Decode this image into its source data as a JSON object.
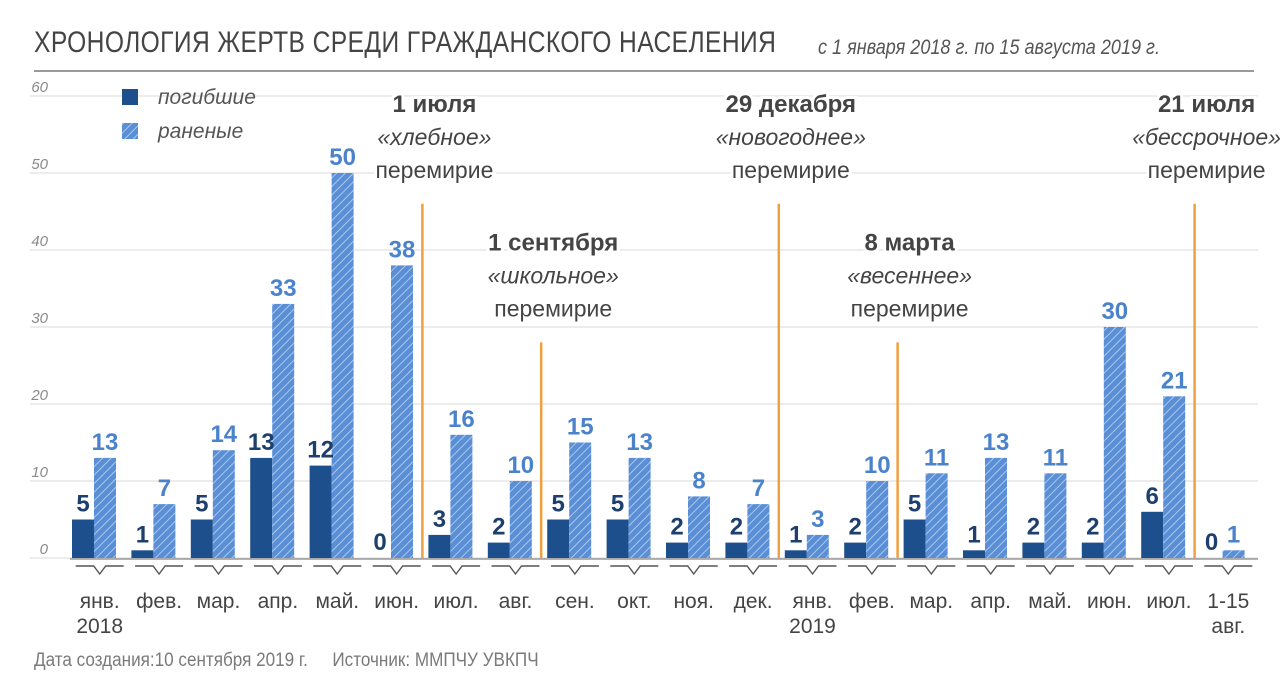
{
  "header": {
    "title": "ХРОНОЛОГИЯ ЖЕРТВ СРЕДИ ГРАЖДАНСКОГО НАСЕЛЕНИЯ",
    "subtitle": "с 1 января 2018 г. по 15 августа 2019 г."
  },
  "footer": {
    "created": "Дата создания:10 сентября 2019 г.",
    "source": "Источник: ММПЧУ УВКПЧ"
  },
  "colors": {
    "killed": "#1d4f8c",
    "wounded": "#5a8fd6",
    "truce_line": "#f0a040",
    "value_killed": "#1d3f6e",
    "value_wounded": "#4a82cc"
  },
  "chart_data": {
    "type": "bar",
    "categories": [
      [
        "янв.",
        "2018"
      ],
      [
        "фев."
      ],
      [
        "мар."
      ],
      [
        "апр."
      ],
      [
        "май."
      ],
      [
        "июн."
      ],
      [
        "июл."
      ],
      [
        "авг."
      ],
      [
        "сен."
      ],
      [
        "окт."
      ],
      [
        "ноя."
      ],
      [
        "дек."
      ],
      [
        "янв.",
        "2019"
      ],
      [
        "фев."
      ],
      [
        "мар."
      ],
      [
        "апр."
      ],
      [
        "май."
      ],
      [
        "июн."
      ],
      [
        "июл."
      ],
      [
        "1-15",
        "авг."
      ]
    ],
    "series": [
      {
        "name": "погибшие",
        "values": [
          5,
          1,
          5,
          13,
          12,
          0,
          3,
          2,
          5,
          5,
          2,
          2,
          1,
          2,
          5,
          1,
          2,
          2,
          6,
          0
        ]
      },
      {
        "name": "раненые",
        "values": [
          13,
          7,
          14,
          33,
          50,
          38,
          16,
          10,
          15,
          13,
          8,
          7,
          3,
          10,
          11,
          13,
          11,
          30,
          21,
          1
        ]
      }
    ],
    "ylim": [
      0,
      60
    ],
    "yticks": [
      0,
      10,
      20,
      30,
      40,
      50,
      60
    ],
    "grid": true,
    "legend_position": "top-left",
    "annotations": [
      {
        "between": [
          5,
          6
        ],
        "top_value": 46,
        "lines": [
          "1 июля",
          "«хлебное»",
          "перемирие"
        ]
      },
      {
        "between": [
          7,
          8
        ],
        "top_value": 28,
        "lines": [
          "1 сентября",
          "«школьное»",
          "перемирие"
        ]
      },
      {
        "between": [
          11,
          12
        ],
        "top_value": 46,
        "lines": [
          "29 декабря",
          "«новогоднее»",
          "перемирие"
        ]
      },
      {
        "between": [
          13,
          14
        ],
        "top_value": 28,
        "lines": [
          "8 марта",
          "«весеннее»",
          "перемирие"
        ]
      },
      {
        "between": [
          18,
          19
        ],
        "top_value": 46,
        "lines": [
          "21 июля",
          "«бессрочное»",
          "перемирие"
        ]
      }
    ]
  }
}
